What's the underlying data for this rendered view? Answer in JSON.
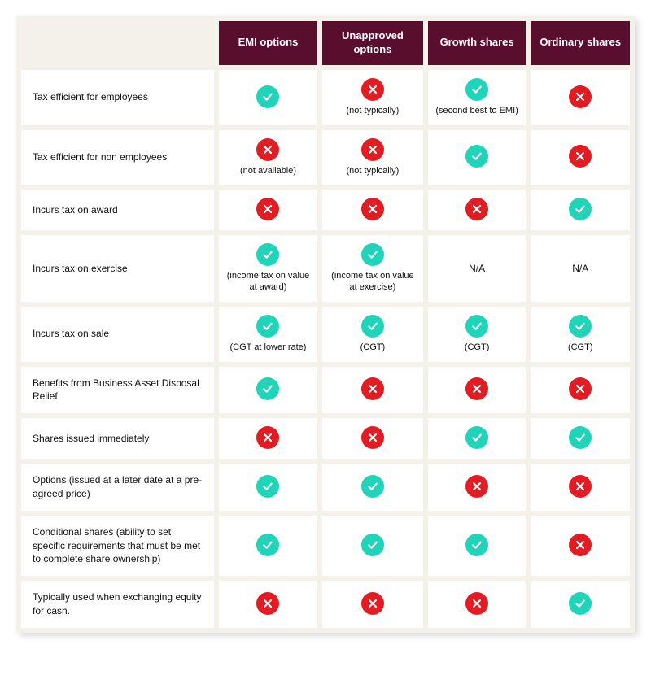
{
  "style": {
    "header_bg": "#5a0e2e",
    "header_fg": "#ffffff",
    "cell_bg": "#ffffff",
    "page_bg": "#f4f0ea",
    "yes_color": "#1fd4b8",
    "no_color": "#e31b23",
    "icon_stroke": "#ffffff",
    "font_size_header": 13,
    "font_size_label": 12,
    "font_size_note": 11
  },
  "columns": [
    {
      "id": "emi",
      "label": "EMI options"
    },
    {
      "id": "unapproved",
      "label": "Unapproved options"
    },
    {
      "id": "growth",
      "label": "Growth shares"
    },
    {
      "id": "ordinary",
      "label": "Ordinary shares"
    }
  ],
  "rows": [
    {
      "label": "Tax efficient for employees",
      "cells": [
        {
          "value": "yes"
        },
        {
          "value": "no",
          "note": "(not typically)"
        },
        {
          "value": "yes",
          "note": "(second best to EMI)"
        },
        {
          "value": "no"
        }
      ]
    },
    {
      "label": "Tax efficient for non employees",
      "cells": [
        {
          "value": "no",
          "note": "(not available)"
        },
        {
          "value": "no",
          "note": "(not typically)"
        },
        {
          "value": "yes"
        },
        {
          "value": "no"
        }
      ]
    },
    {
      "label": "Incurs tax on award",
      "cells": [
        {
          "value": "no"
        },
        {
          "value": "no"
        },
        {
          "value": "no"
        },
        {
          "value": "yes"
        }
      ]
    },
    {
      "label": "Incurs tax on exercise",
      "cells": [
        {
          "value": "yes",
          "note": "(income tax on value at award)"
        },
        {
          "value": "yes",
          "note": "(income tax on value at exercise)"
        },
        {
          "value": "na",
          "note": "N/A"
        },
        {
          "value": "na",
          "note": "N/A"
        }
      ]
    },
    {
      "label": "Incurs tax on sale",
      "cells": [
        {
          "value": "yes",
          "note": "(CGT at lower rate)"
        },
        {
          "value": "yes",
          "note": "(CGT)"
        },
        {
          "value": "yes",
          "note": "(CGT)"
        },
        {
          "value": "yes",
          "note": "(CGT)"
        }
      ]
    },
    {
      "label": "Benefits from Business Asset Disposal Relief",
      "cells": [
        {
          "value": "yes"
        },
        {
          "value": "no"
        },
        {
          "value": "no"
        },
        {
          "value": "no"
        }
      ]
    },
    {
      "label": "Shares issued immediately",
      "cells": [
        {
          "value": "no"
        },
        {
          "value": "no"
        },
        {
          "value": "yes"
        },
        {
          "value": "yes"
        }
      ]
    },
    {
      "label": "Options (issued at a later date at a pre-agreed price)",
      "cells": [
        {
          "value": "yes"
        },
        {
          "value": "yes"
        },
        {
          "value": "no"
        },
        {
          "value": "no"
        }
      ]
    },
    {
      "label": "Conditional shares (ability to set specific requirements that must be met to complete share ownership)",
      "cells": [
        {
          "value": "yes"
        },
        {
          "value": "yes"
        },
        {
          "value": "yes"
        },
        {
          "value": "no"
        }
      ]
    },
    {
      "label": "Typically used when exchanging equity for cash.",
      "cells": [
        {
          "value": "no"
        },
        {
          "value": "no"
        },
        {
          "value": "no"
        },
        {
          "value": "yes"
        }
      ]
    }
  ]
}
